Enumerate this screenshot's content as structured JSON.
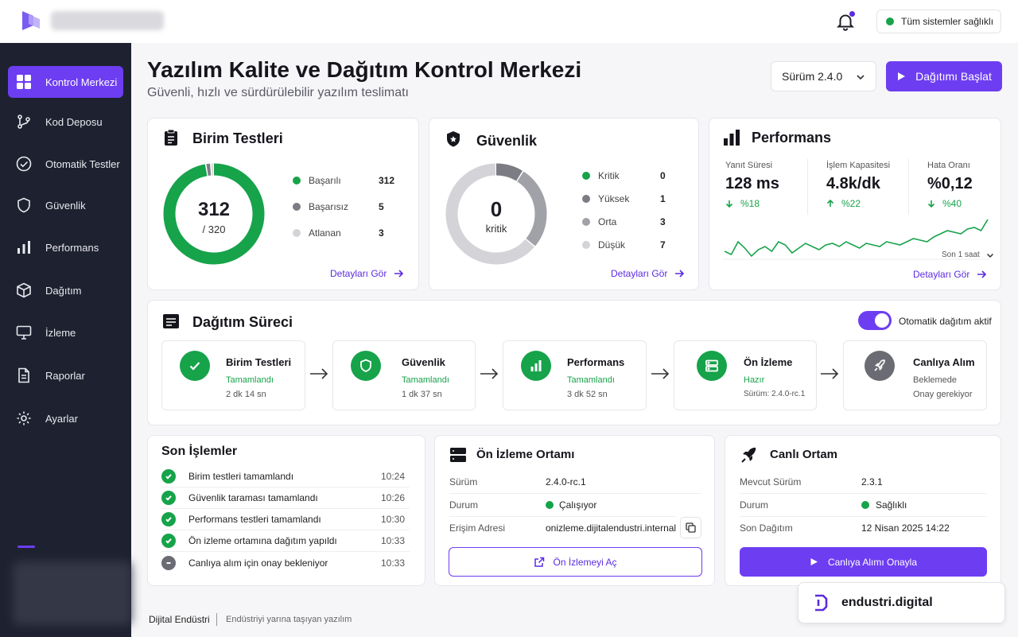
{
  "header": {
    "status_text": "Tüm sistemler sağlıklı",
    "status_color": "#16a34a",
    "accent_color": "#6d3df2"
  },
  "sidebar": {
    "items": [
      {
        "label": "Kontrol Merkezi",
        "icon": "grid-icon",
        "active": true
      },
      {
        "label": "Kod Deposu",
        "icon": "branch-icon"
      },
      {
        "label": "Otomatik Testler",
        "icon": "check-circle-icon"
      },
      {
        "label": "Güvenlik",
        "icon": "shield-icon"
      },
      {
        "label": "Performans",
        "icon": "bar-chart-icon"
      },
      {
        "label": "Dağıtım",
        "icon": "box-icon"
      },
      {
        "label": "İzleme",
        "icon": "monitor-icon"
      },
      {
        "label": "Raporlar",
        "icon": "document-icon"
      },
      {
        "label": "Ayarlar",
        "icon": "gear-icon"
      }
    ]
  },
  "page": {
    "title": "Yazılım Kalite ve Dağıtım Kontrol Merkezi",
    "subtitle": "Güvenli, hızlı ve sürdürülebilir yazılım teslimatı",
    "version_select": "Sürüm 2.4.0",
    "deploy_button": "Dağıtımı Başlat"
  },
  "unit_tests": {
    "title": "Birim Testleri",
    "center_value": "312",
    "center_sub": "/ 320",
    "legend": [
      {
        "label": "Başarılı",
        "value": "312",
        "count": 312,
        "color": "#16a34a"
      },
      {
        "label": "Başarısız",
        "value": "5",
        "count": 5,
        "color": "#7c7c84"
      },
      {
        "label": "Atlanan",
        "value": "3",
        "count": 3,
        "color": "#d4d4d8"
      }
    ],
    "link": "Detayları Gör"
  },
  "security": {
    "title": "Güvenlik",
    "center_value": "0",
    "center_sub": "kritik",
    "legend": [
      {
        "label": "Kritik",
        "value": "0",
        "count": 0,
        "color": "#16a34a"
      },
      {
        "label": "Yüksek",
        "value": "1",
        "count": 1,
        "color": "#7c7c84"
      },
      {
        "label": "Orta",
        "value": "3",
        "count": 3,
        "color": "#a1a1a8"
      },
      {
        "label": "Düşük",
        "value": "7",
        "count": 7,
        "color": "#d4d4d8"
      }
    ],
    "link": "Detayları Gör"
  },
  "performance": {
    "title": "Performans",
    "metrics": [
      {
        "label": "Yanıt Süresi",
        "value": "128 ms",
        "delta": "%18",
        "direction": "down"
      },
      {
        "label": "İşlem Kapasitesi",
        "value": "4.8k/dk",
        "delta": "%22",
        "direction": "up"
      },
      {
        "label": "Hata Oranı",
        "value": "%0,12",
        "delta": "%40",
        "direction": "down"
      }
    ],
    "range": "Son 1 saat",
    "link": "Detayları Gör",
    "sparkline": [
      22,
      20,
      28,
      24,
      19,
      23,
      25,
      22,
      28,
      26,
      21,
      24,
      27,
      25,
      23,
      26,
      27,
      25,
      28,
      26,
      24,
      27,
      26,
      25,
      28,
      27,
      26,
      28,
      30,
      29,
      28,
      31,
      33,
      35,
      34,
      33,
      36,
      37,
      35,
      42
    ]
  },
  "pipeline": {
    "title": "Dağıtım Süreci",
    "auto_label": "Otomatik dağıtım aktif",
    "auto_enabled": true,
    "steps": [
      {
        "name": "Birim Testleri",
        "status": "Tamamlandı",
        "detail": "2 dk 14 sn",
        "icon": "check-icon"
      },
      {
        "name": "Güvenlik",
        "status": "Tamamlandı",
        "detail": "1 dk 37 sn",
        "icon": "shield-icon"
      },
      {
        "name": "Performans",
        "status": "Tamamlandı",
        "detail": "3 dk 52 sn",
        "icon": "bar-chart-icon"
      },
      {
        "name": "Ön İzleme",
        "status": "Hazır",
        "detail": "Sürüm: 2.4.0-rc.1",
        "icon": "server-icon"
      },
      {
        "name": "Canlıya Alım",
        "status": "Beklemede",
        "detail": "Onay gerekiyor",
        "icon": "rocket-icon"
      }
    ]
  },
  "activity": {
    "title": "Son İşlemler",
    "items": [
      {
        "text": "Birim testleri tamamlandı",
        "time": "10:24",
        "state": "done"
      },
      {
        "text": "Güvenlik taraması tamamlandı",
        "time": "10:26",
        "state": "done"
      },
      {
        "text": "Performans testleri tamamlandı",
        "time": "10:30",
        "state": "done"
      },
      {
        "text": "Ön izleme ortamına dağıtım yapıldı",
        "time": "10:33",
        "state": "done"
      },
      {
        "text": "Canlıya alım için onay bekleniyor",
        "time": "10:33",
        "state": "pending"
      }
    ]
  },
  "preview_env": {
    "title": "Ön İzleme Ortamı",
    "rows": [
      {
        "key": "Sürüm",
        "value": "2.4.0-rc.1"
      },
      {
        "key": "Durum",
        "value": "Çalışıyor"
      },
      {
        "key": "Erişim Adresi",
        "value": "onizleme.dijitalendustri.internal"
      }
    ],
    "button": "Ön İzlemeyi Aç"
  },
  "live_env": {
    "title": "Canlı Ortam",
    "rows": [
      {
        "key": "Mevcut Sürüm",
        "value": "2.3.1"
      },
      {
        "key": "Durum",
        "value": "Sağlıklı"
      },
      {
        "key": "Son Dağıtım",
        "value": "12 Nisan 2025 14:22"
      }
    ],
    "button": "Canlıya Alımı Onayla"
  },
  "footer": {
    "brand": "Dijital Endüstri",
    "tagline": "Endüstriyi yarına taşıyan yazılım",
    "badge": "endustri.digital"
  }
}
